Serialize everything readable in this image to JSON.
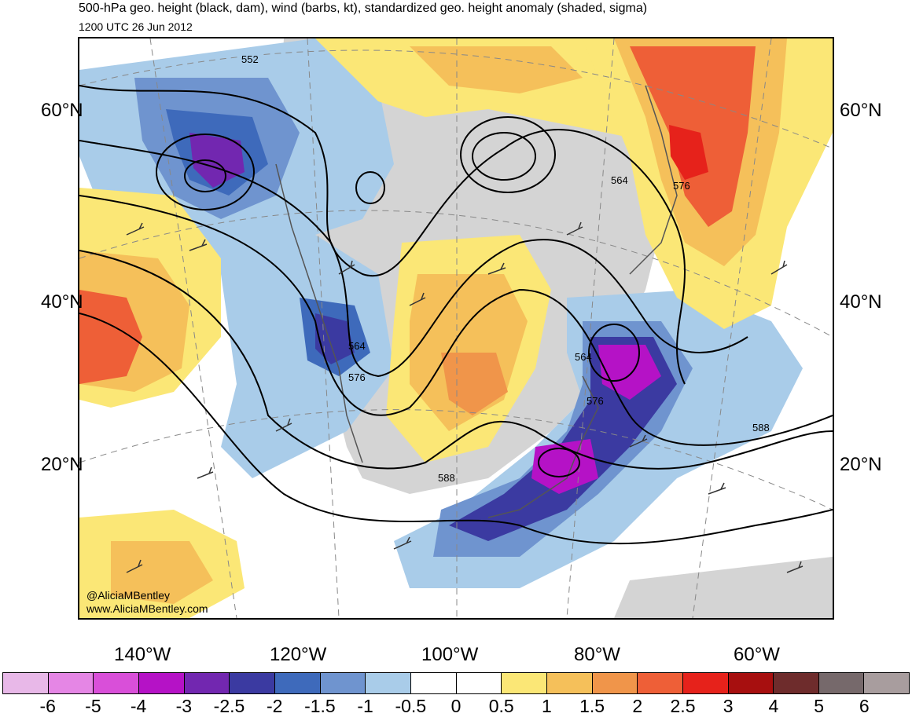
{
  "title": "500-hPa geo. height (black, dam), wind (barbs, kt), standardized geo. height anomaly (shaded, sigma)",
  "subtitle": "1200 UTC 26 Jun 2012",
  "latitude_labels": [
    "60°N",
    "40°N",
    "20°N"
  ],
  "longitude_labels": [
    "140°W",
    "120°W",
    "100°W",
    "80°W",
    "60°W"
  ],
  "contour_labels": [
    "552",
    "564",
    "576",
    "564",
    "576",
    "564",
    "576",
    "588",
    "588"
  ],
  "credit": {
    "handle": "@AliciaMBentley",
    "website": "www.AliciaMBentley.com"
  },
  "colorbar": {
    "labels": [
      "-6",
      "-5",
      "-4",
      "-3",
      "-2.5",
      "-2",
      "-1.5",
      "-1",
      "-0.5",
      "0",
      "0.5",
      "1",
      "1.5",
      "2",
      "2.5",
      "3",
      "4",
      "5",
      "6"
    ],
    "colors": [
      "#e8b8e8",
      "#e586e5",
      "#d94fd9",
      "#b512c6",
      "#7227b0",
      "#3b3aa1",
      "#3e6abb",
      "#6f94cf",
      "#a9cce9",
      "#ffffff",
      "#ffffff",
      "#fbe776",
      "#f5c05a",
      "#f0954a",
      "#ee5f37",
      "#e6221b",
      "#a70f0f",
      "#6e2c2c",
      "#76696b",
      "#a89d9e"
    ]
  }
}
